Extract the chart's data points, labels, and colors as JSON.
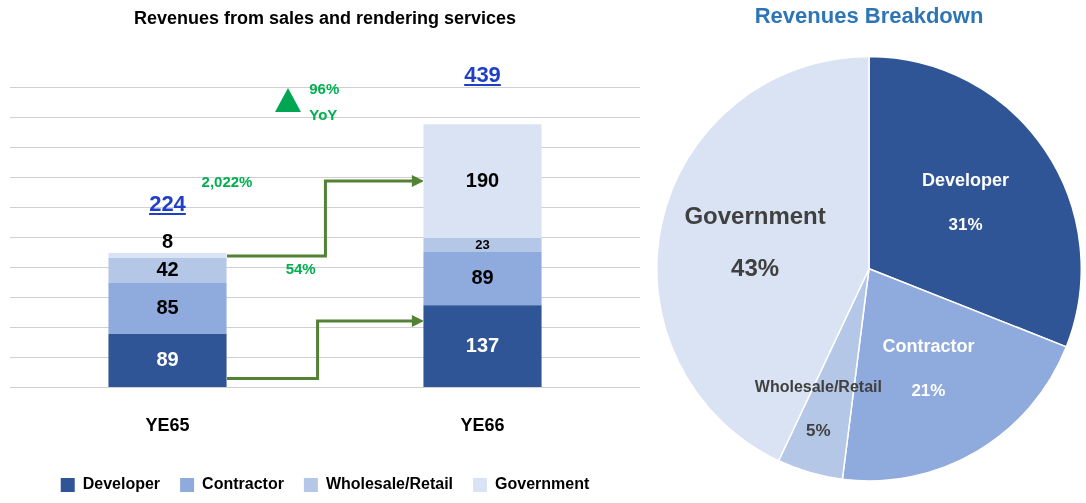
{
  "chart_data": [
    {
      "type": "bar",
      "title": "Revenues from sales and rendering services",
      "categories": [
        "YE65",
        "YE66"
      ],
      "stacked": true,
      "series": [
        {
          "name": "Developer",
          "color": "#2f5597",
          "values": [
            89,
            137
          ]
        },
        {
          "name": "Contractor",
          "color": "#8faadc",
          "values": [
            85,
            89
          ]
        },
        {
          "name": "Wholesale/Retail",
          "color": "#b4c7e7",
          "values": [
            42,
            23
          ]
        },
        {
          "name": "Government",
          "color": "#dae3f3",
          "values": [
            8,
            190
          ]
        }
      ],
      "ylim": [
        0,
        500
      ],
      "yticks": [
        {
          "value": 0,
          "label": null
        },
        {
          "value": 50,
          "label": null
        },
        {
          "value": 100,
          "label": null
        },
        {
          "value": 150,
          "label": null
        },
        {
          "value": 200,
          "label": null
        },
        {
          "value": 250,
          "label": null
        },
        {
          "value": 300,
          "label": null
        },
        {
          "value": 350,
          "label": null
        },
        {
          "value": 400,
          "label": null
        },
        {
          "value": 450,
          "label": null
        },
        {
          "value": 500,
          "label": null
        }
      ],
      "tick_labels": "x",
      "grid": "y",
      "data_labels": true,
      "totals": [
        "224",
        "439"
      ],
      "legend": "bottom",
      "annotations": [
        "96% YoY",
        "2,022%",
        "54%"
      ]
    },
    {
      "type": "pie",
      "title": "Revenues Breakdown",
      "categories": [
        "Developer",
        "Contractor",
        "Wholesale/Retail",
        "Government"
      ],
      "values": [
        31,
        21,
        5,
        43
      ],
      "colors": [
        "#2f5597",
        "#8faadc",
        "#b4c7e7",
        "#dae3f3"
      ],
      "value_labels": [
        "31%",
        "21%",
        "5%",
        "43%"
      ],
      "legend": false
    }
  ]
}
